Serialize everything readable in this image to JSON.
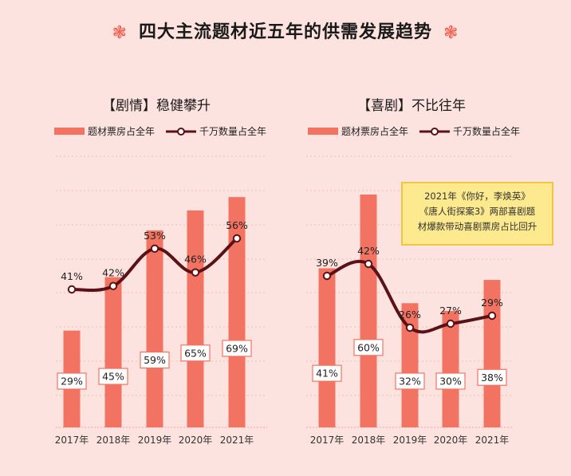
{
  "header": {
    "title": "四大主流题材近五年的供需发展趋势",
    "flower_glyph": "❃"
  },
  "colors": {
    "bar": "#f37362",
    "line": "#5a1216",
    "background": "#fde3df",
    "box_border": "#f37362",
    "callout_bg": "#fde98e",
    "callout_border": "#f2c443"
  },
  "legend": {
    "bar_label": "题材票房占全年",
    "line_label": "千万数量占全年"
  },
  "chart_data": [
    {
      "type": "bar+line",
      "title": "【剧情】稳健攀升",
      "categories": [
        "2017年",
        "2018年",
        "2019年",
        "2020年",
        "2021年"
      ],
      "series": [
        {
          "name": "题材票房占全年",
          "type": "bar",
          "values": [
            29,
            45,
            59,
            65,
            69
          ],
          "labels": [
            "29%",
            "45%",
            "59%",
            "65%",
            "69%"
          ]
        },
        {
          "name": "千万数量占全年",
          "type": "line",
          "values": [
            41,
            42,
            53,
            46,
            56
          ],
          "labels": [
            "41%",
            "42%",
            "53%",
            "46%",
            "56%"
          ]
        }
      ],
      "ylim": [
        0,
        70
      ],
      "grid": true
    },
    {
      "type": "bar+line",
      "title": "【喜剧】不比往年",
      "categories": [
        "2017年",
        "2018年",
        "2019年",
        "2020年",
        "2021年"
      ],
      "series": [
        {
          "name": "题材票房占全年",
          "type": "bar",
          "values": [
            41,
            60,
            32,
            30,
            38
          ],
          "labels": [
            "41%",
            "60%",
            "32%",
            "30%",
            "38%"
          ]
        },
        {
          "name": "千万数量占全年",
          "type": "line",
          "values": [
            39,
            42,
            26,
            27,
            29
          ],
          "labels": [
            "39%",
            "42%",
            "26%",
            "27%",
            "29%"
          ]
        }
      ],
      "ylim": [
        0,
        60
      ],
      "grid": true,
      "annotation": [
        "2021年《你好，李焕英》",
        "《唐人街探案3》两部喜剧题",
        "材爆款带动喜剧票房占比回升"
      ]
    }
  ]
}
